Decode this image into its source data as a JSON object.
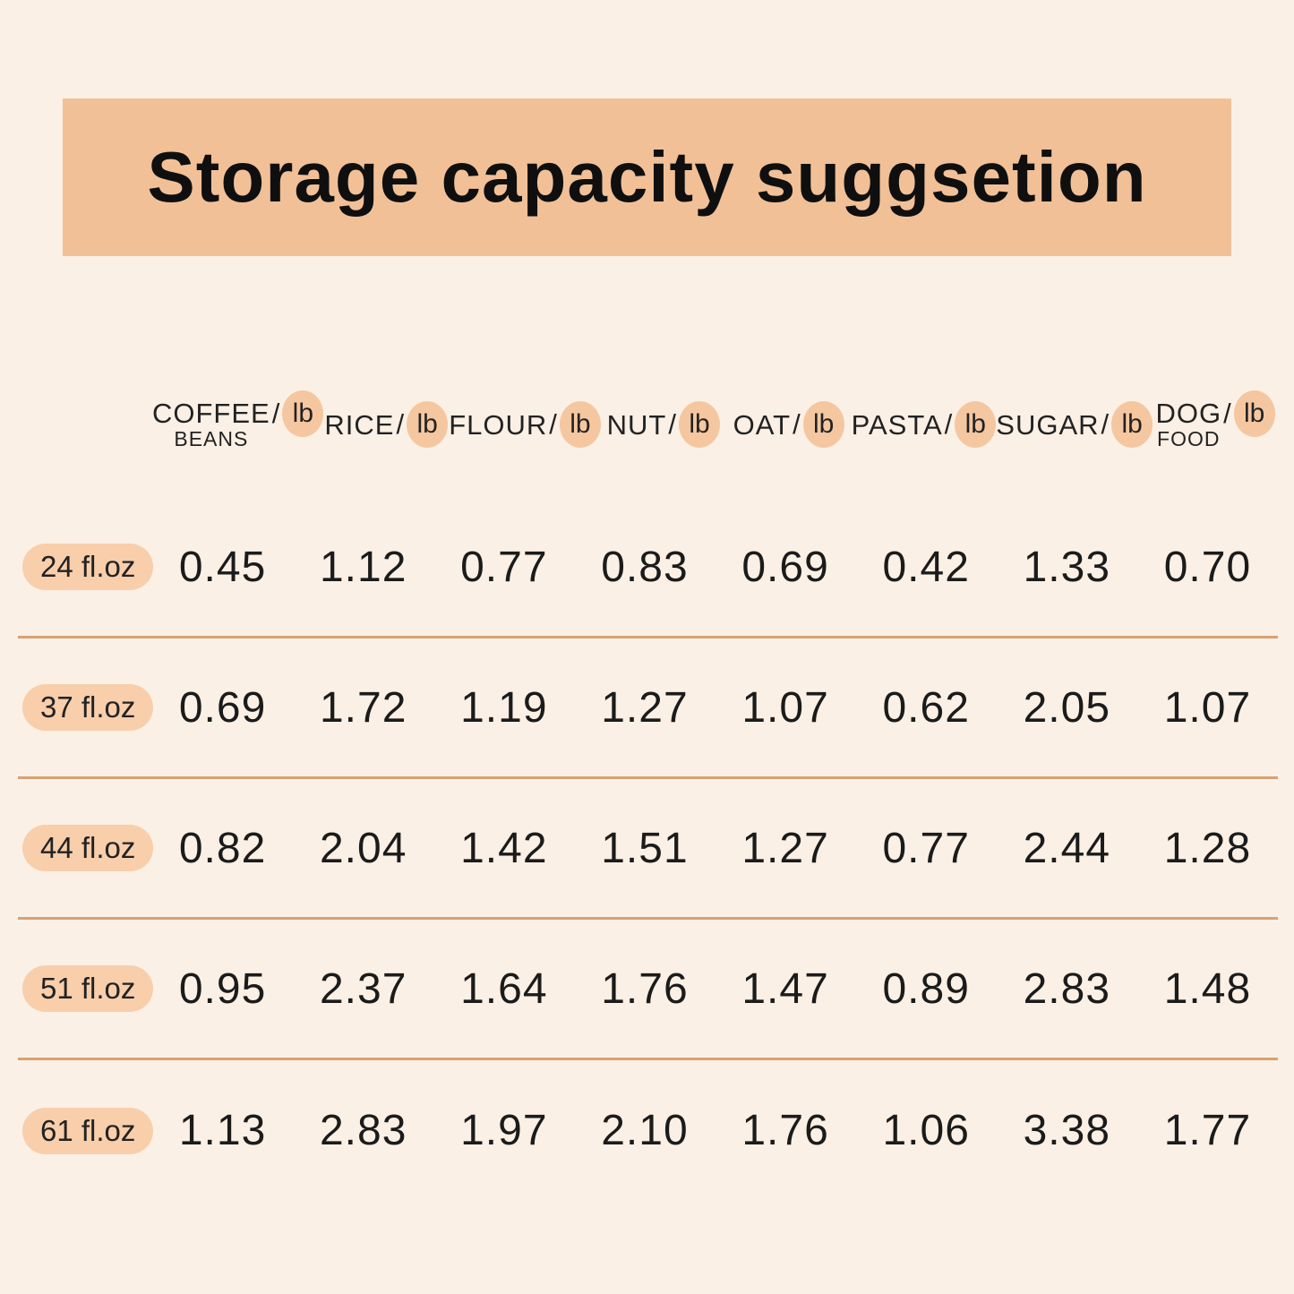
{
  "colors": {
    "background": "#FBF0E5",
    "banner": "#F2C097",
    "pill": "#F8CEAB",
    "unit_blob": "#F5C7A0",
    "divider": "#D8A273",
    "text": "#1B1B1B"
  },
  "chart_data": {
    "type": "table",
    "title": "Storage capacity suggsetion",
    "unit_note": "values are weights in lb per container size",
    "columns": [
      {
        "name": "COFFEE",
        "name2": "BEANS",
        "separator": "/",
        "unit": "lb"
      },
      {
        "name": "RICE",
        "separator": "/",
        "unit": "lb"
      },
      {
        "name": "FLOUR",
        "separator": "/",
        "unit": "lb"
      },
      {
        "name": "NUT",
        "separator": "/",
        "unit": "lb"
      },
      {
        "name": "OAT",
        "separator": "/",
        "unit": "lb"
      },
      {
        "name": "PASTA",
        "separator": "/",
        "unit": "lb"
      },
      {
        "name": "SUGAR",
        "separator": "/",
        "unit": "lb"
      },
      {
        "name": "DOG",
        "name2": "FOOD",
        "separator": "/",
        "unit": "lb"
      }
    ],
    "rows": [
      {
        "label": "24 fl.oz",
        "values": [
          "0.45",
          "1.12",
          "0.77",
          "0.83",
          "0.69",
          "0.42",
          "1.33",
          "0.70"
        ]
      },
      {
        "label": "37 fl.oz",
        "values": [
          "0.69",
          "1.72",
          "1.19",
          "1.27",
          "1.07",
          "0.62",
          "2.05",
          "1.07"
        ]
      },
      {
        "label": "44 fl.oz",
        "values": [
          "0.82",
          "2.04",
          "1.42",
          "1.51",
          "1.27",
          "0.77",
          "2.44",
          "1.28"
        ]
      },
      {
        "label": "51 fl.oz",
        "values": [
          "0.95",
          "2.37",
          "1.64",
          "1.76",
          "1.47",
          "0.89",
          "2.83",
          "1.48"
        ]
      },
      {
        "label": "61 fl.oz",
        "values": [
          "1.13",
          "2.83",
          "1.97",
          "2.10",
          "1.76",
          "1.06",
          "3.38",
          "1.77"
        ]
      }
    ]
  }
}
